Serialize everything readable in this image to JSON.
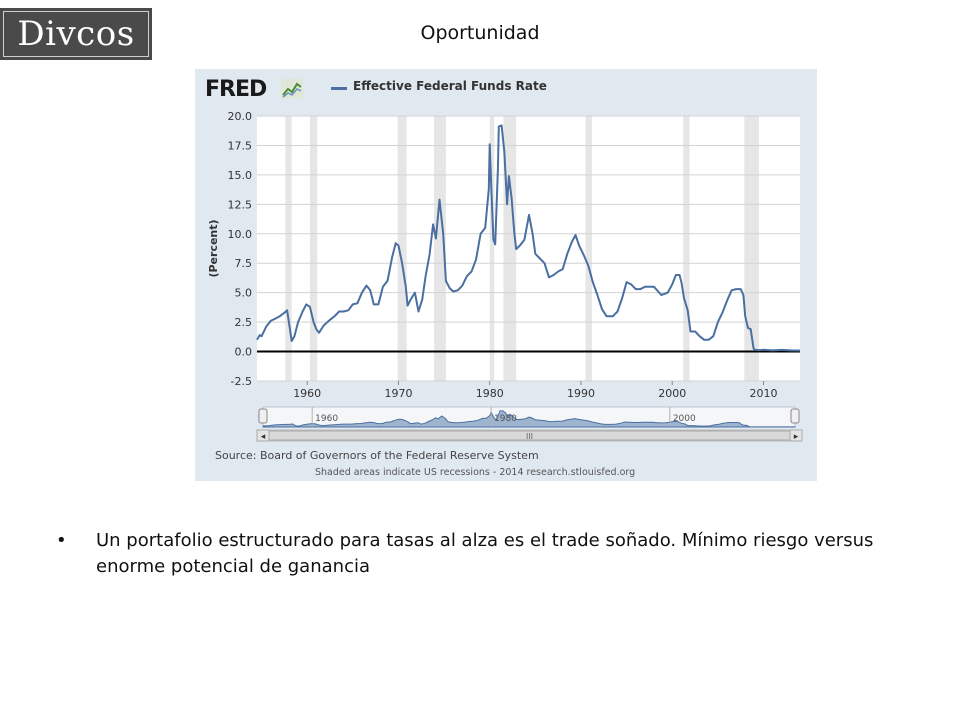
{
  "logo": {
    "text": "Divcos"
  },
  "slide": {
    "title": "Oportunidad"
  },
  "fred": {
    "brand": "FRED",
    "series_label": "Effective Federal Funds Rate",
    "ylabel": "(Percent)",
    "source": "Source: Board of Governors of the Federal Reserve System",
    "note": "Shaded areas indicate US recessions - 2014 research.stlouisfed.org",
    "navigator_labels": [
      "1960",
      "1980",
      "2000"
    ],
    "scrollbar_grip": "III",
    "scroll_left": "◂",
    "scroll_right": "▸"
  },
  "chart_data": {
    "type": "line",
    "title": "Effective Federal Funds Rate",
    "xlabel": "",
    "ylabel": "(Percent)",
    "xlim": [
      1954.5,
      2014.0
    ],
    "ylim": [
      -2.5,
      20.0
    ],
    "x_ticks": [
      "1960",
      "1970",
      "1980",
      "1990",
      "2000",
      "2010"
    ],
    "x_tick_values": [
      1960,
      1970,
      1980,
      1990,
      2000,
      2010
    ],
    "y_ticks": [
      "-2.5",
      "0.0",
      "2.5",
      "5.0",
      "7.5",
      "10.0",
      "12.5",
      "15.0",
      "17.5",
      "20.0"
    ],
    "y_tick_values": [
      -2.5,
      0,
      2.5,
      5,
      7.5,
      10,
      12.5,
      15,
      17.5,
      20
    ],
    "recessions": [
      [
        1957.6,
        1958.3
      ],
      [
        1960.3,
        1961.1
      ],
      [
        1969.9,
        1970.9
      ],
      [
        1973.9,
        1975.2
      ],
      [
        1980.0,
        1980.5
      ],
      [
        1981.5,
        1982.9
      ],
      [
        1990.5,
        1991.2
      ],
      [
        2001.2,
        2001.9
      ],
      [
        2007.9,
        2009.5
      ]
    ],
    "series": [
      {
        "name": "Effective Federal Funds Rate",
        "color": "#4a6fa0",
        "x": [
          1954.5,
          1954.8,
          1955.0,
          1955.5,
          1956.0,
          1956.5,
          1957.0,
          1957.5,
          1957.8,
          1958.0,
          1958.3,
          1958.6,
          1959.0,
          1959.5,
          1959.9,
          1960.3,
          1960.7,
          1961.0,
          1961.3,
          1961.8,
          1962.5,
          1963.0,
          1963.5,
          1964.0,
          1964.5,
          1965.0,
          1965.5,
          1966.0,
          1966.5,
          1966.9,
          1967.3,
          1967.8,
          1968.3,
          1968.8,
          1969.3,
          1969.7,
          1970.0,
          1970.4,
          1970.8,
          1971.0,
          1971.4,
          1971.8,
          1972.2,
          1972.6,
          1973.0,
          1973.4,
          1973.8,
          1974.1,
          1974.5,
          1974.9,
          1975.2,
          1975.6,
          1976.0,
          1976.5,
          1977.0,
          1977.5,
          1978.0,
          1978.5,
          1979.0,
          1979.5,
          1979.9,
          1980.0,
          1980.2,
          1980.4,
          1980.6,
          1980.9,
          1981.0,
          1981.3,
          1981.6,
          1981.9,
          1982.1,
          1982.4,
          1982.7,
          1982.9,
          1983.3,
          1983.8,
          1984.3,
          1984.7,
          1985.0,
          1985.5,
          1986.0,
          1986.5,
          1987.0,
          1987.5,
          1988.0,
          1988.5,
          1989.0,
          1989.4,
          1989.8,
          1990.3,
          1990.8,
          1991.3,
          1991.8,
          1992.3,
          1992.8,
          1993.5,
          1994.0,
          1994.5,
          1995.0,
          1995.5,
          1996.0,
          1996.5,
          1997.0,
          1998.0,
          1998.8,
          1999.5,
          2000.0,
          2000.4,
          2000.8,
          2001.0,
          2001.3,
          2001.7,
          2002.0,
          2002.5,
          2003.0,
          2003.5,
          2004.0,
          2004.5,
          2005.0,
          2005.5,
          2006.0,
          2006.5,
          2007.0,
          2007.5,
          2007.8,
          2008.0,
          2008.3,
          2008.6,
          2008.9,
          2009.0,
          2009.5,
          2010.0,
          2011.0,
          2012.0,
          2013.0,
          2014.0
        ],
        "y": [
          1.0,
          1.4,
          1.3,
          2.1,
          2.6,
          2.8,
          3.0,
          3.3,
          3.5,
          2.5,
          0.9,
          1.3,
          2.5,
          3.4,
          4.0,
          3.8,
          2.5,
          1.9,
          1.6,
          2.2,
          2.7,
          3.0,
          3.4,
          3.4,
          3.5,
          4.0,
          4.1,
          5.0,
          5.6,
          5.2,
          4.0,
          4.0,
          5.5,
          6.0,
          8.0,
          9.2,
          9.0,
          7.5,
          5.5,
          3.9,
          4.5,
          5.0,
          3.4,
          4.4,
          6.5,
          8.2,
          10.8,
          9.6,
          12.9,
          10.0,
          6.0,
          5.4,
          5.1,
          5.2,
          5.6,
          6.4,
          6.8,
          7.8,
          10.0,
          10.5,
          13.8,
          17.6,
          13.5,
          9.5,
          9.1,
          15.5,
          19.1,
          19.2,
          17.0,
          12.5,
          14.9,
          13.0,
          10.0,
          8.7,
          9.0,
          9.5,
          11.6,
          10.0,
          8.3,
          7.9,
          7.5,
          6.3,
          6.5,
          6.8,
          7.0,
          8.3,
          9.3,
          9.9,
          9.0,
          8.2,
          7.3,
          5.9,
          4.8,
          3.6,
          3.0,
          3.0,
          3.4,
          4.5,
          5.9,
          5.7,
          5.3,
          5.3,
          5.5,
          5.5,
          4.8,
          5.0,
          5.7,
          6.5,
          6.5,
          5.9,
          4.5,
          3.5,
          1.7,
          1.7,
          1.3,
          1.0,
          1.0,
          1.3,
          2.5,
          3.3,
          4.3,
          5.2,
          5.3,
          5.3,
          4.8,
          3.0,
          2.0,
          1.9,
          0.3,
          0.16,
          0.12,
          0.15,
          0.1,
          0.14,
          0.1,
          0.09
        ]
      }
    ]
  },
  "bullets": [
    {
      "marker": "•",
      "text": "Un portafolio estructurado para tasas al alza es el trade soñado. Mínimo riesgo versus enorme potencial de ganancia"
    }
  ]
}
